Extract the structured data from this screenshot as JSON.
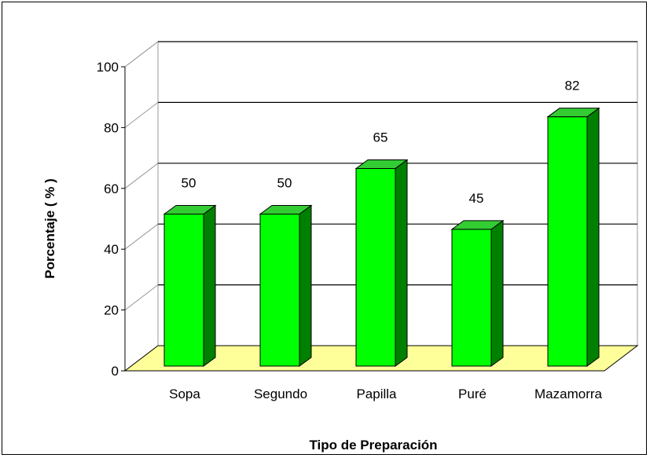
{
  "chart_data": {
    "type": "bar",
    "title": "",
    "xlabel": "Tipo de Preparación",
    "ylabel": "Porcentaje ( % )",
    "categories": [
      "Sopa",
      "Segundo",
      "Papilla",
      "Puré",
      "Mazamorra"
    ],
    "values": [
      50,
      50,
      65,
      45,
      82
    ],
    "data_labels": [
      "50",
      "50",
      "65",
      "45",
      "82"
    ],
    "ylim": [
      0,
      100
    ],
    "yticks": [
      0,
      20,
      40,
      60,
      80,
      100
    ],
    "grid": true,
    "style": "3d-bar",
    "colors": {
      "bar_front": "#00ff00",
      "bar_side": "#008000",
      "bar_top": "#33cc33",
      "floor": "#ffff99",
      "gridline": "#000000"
    }
  }
}
